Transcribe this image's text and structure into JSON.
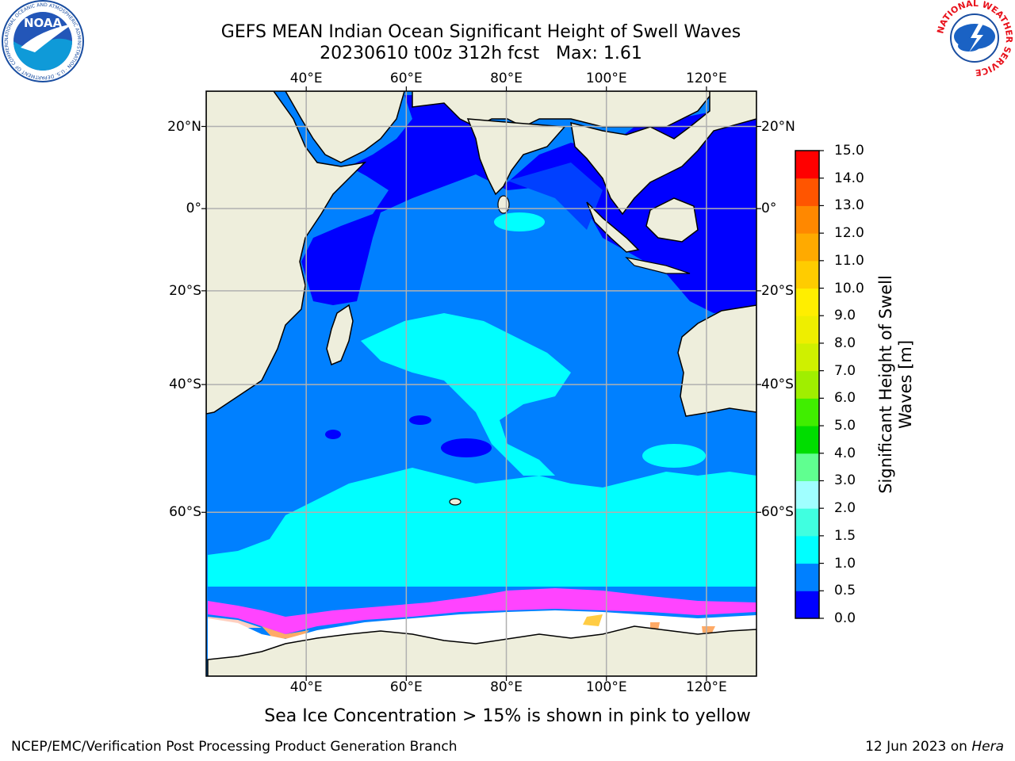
{
  "title": {
    "line1": "GEFS MEAN Indian Ocean Significant Height of Swell Waves",
    "line2": "20230610 t00z 312h fcst   Max: 1.61"
  },
  "map": {
    "lon_labels": [
      "40°E",
      "60°E",
      "80°E",
      "100°E",
      "120°E"
    ],
    "lat_labels": [
      "20°N",
      "0°",
      "20°S",
      "40°S",
      "60°S"
    ],
    "lon_range": [
      20,
      130
    ],
    "lat_range": [
      -75,
      28
    ],
    "grid": true
  },
  "colorbar": {
    "label_line1": "Significant Height of Swell",
    "label_line2": "Waves [m]",
    "ticks": [
      "0.0",
      "0.5",
      "1.0",
      "1.5",
      "2.0",
      "3.0",
      "4.0",
      "5.0",
      "6.0",
      "7.0",
      "8.0",
      "9.0",
      "10.0",
      "11.0",
      "12.0",
      "13.0",
      "14.0",
      "15.0"
    ],
    "colors": [
      "#0000ff",
      "#0080ff",
      "#00ffff",
      "#40ffe0",
      "#a0ffff",
      "#60ff90",
      "#00dd00",
      "#40ee00",
      "#a0ee00",
      "#cff000",
      "#eeee00",
      "#ffee00",
      "#ffcc00",
      "#ffaa00",
      "#ff8800",
      "#ff5500",
      "#ff0000"
    ]
  },
  "caption": "Sea Ice Concentration > 15% is shown in pink to yellow",
  "footer": {
    "left": "NCEP/EMC/Verification Post Processing Product Generation Branch",
    "date": "12 Jun 2023 on ",
    "machine": "Hera"
  },
  "logos": {
    "noaa": "NOAA",
    "noaa_ring": "NATIONAL OCEANIC AND ATMOSPHERIC ADMINISTRATION · U.S. DEPARTMENT OF COMMERCE",
    "nws_ring": "NATIONAL WEATHER SERVICE"
  },
  "colors": {
    "land": "#eeeedc",
    "ocean_low": "#0000ff",
    "ocean_mid": "#0080ff",
    "ocean_high": "#00ffff",
    "ice": "#ff44ff",
    "gridline": "#b0b0b0"
  }
}
